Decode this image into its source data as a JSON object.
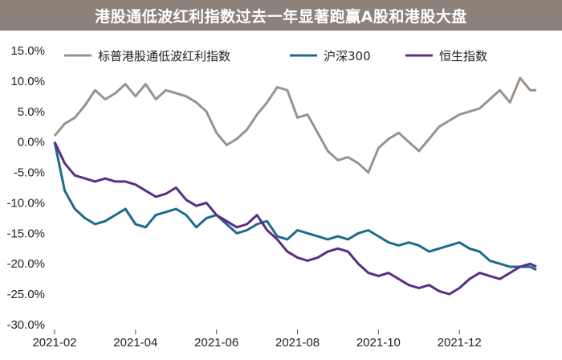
{
  "title": "港股通低波红利指数过去一年显著跑赢A股和港股大盘",
  "colors": {
    "title_bg": "#8c8279",
    "s1": "#9a928b",
    "s2": "#1d6a8c",
    "s3": "#5b2d86"
  },
  "chart_data": {
    "type": "line",
    "ylim": [
      -30,
      15
    ],
    "y_ticks": [
      15,
      10,
      5,
      0,
      -5,
      -10,
      -15,
      -20,
      -25,
      -30
    ],
    "y_tick_labels": [
      "15.0%",
      "10.0%",
      "5.0%",
      "0.0%",
      "-5.0%",
      "-10.0%",
      "-15.0%",
      "-20.0%",
      "-25.0%",
      "-30.0%"
    ],
    "x_ticks": [
      0,
      2,
      4,
      6,
      8,
      10
    ],
    "x_tick_labels": [
      "2021-02",
      "2021-04",
      "2021-06",
      "2021-08",
      "2021-10",
      "2021-12"
    ],
    "xlim": [
      0,
      11.9
    ],
    "legend_position": "top",
    "series": [
      {
        "name": "标普港股通低波红利指数",
        "color": "#9a928b",
        "x": [
          0,
          0.25,
          0.5,
          0.75,
          1,
          1.25,
          1.5,
          1.75,
          2,
          2.25,
          2.5,
          2.75,
          3,
          3.25,
          3.5,
          3.75,
          4,
          4.25,
          4.5,
          4.75,
          5,
          5.25,
          5.5,
          5.75,
          6,
          6.25,
          6.5,
          6.75,
          7,
          7.25,
          7.5,
          7.75,
          8,
          8.25,
          8.5,
          8.75,
          9,
          9.25,
          9.5,
          9.75,
          10,
          10.25,
          10.5,
          10.75,
          11,
          11.25,
          11.5,
          11.75,
          11.9
        ],
        "values": [
          1.0,
          3.0,
          4.0,
          6.0,
          8.5,
          7.0,
          8.0,
          9.5,
          7.5,
          9.5,
          7.0,
          8.5,
          8.0,
          7.5,
          6.5,
          5.0,
          1.5,
          -0.5,
          0.5,
          2.0,
          4.5,
          6.5,
          9.0,
          8.5,
          4.0,
          4.5,
          1.5,
          -1.5,
          -3.0,
          -2.5,
          -3.5,
          -5.0,
          -1.0,
          0.5,
          1.5,
          0.0,
          -1.5,
          0.5,
          2.5,
          3.5,
          4.5,
          5.0,
          5.5,
          7.0,
          8.5,
          6.5,
          10.5,
          8.5,
          8.5
        ]
      },
      {
        "name": "沪深300",
        "color": "#1d6a8c",
        "x": [
          0,
          0.25,
          0.5,
          0.75,
          1,
          1.25,
          1.5,
          1.75,
          2,
          2.25,
          2.5,
          2.75,
          3,
          3.25,
          3.5,
          3.75,
          4,
          4.25,
          4.5,
          4.75,
          5,
          5.25,
          5.5,
          5.75,
          6,
          6.25,
          6.5,
          6.75,
          7,
          7.25,
          7.5,
          7.75,
          8,
          8.25,
          8.5,
          8.75,
          9,
          9.25,
          9.5,
          9.75,
          10,
          10.25,
          10.5,
          10.75,
          11,
          11.25,
          11.5,
          11.75,
          11.9
        ],
        "values": [
          0.0,
          -8.0,
          -11.0,
          -12.5,
          -13.5,
          -13.0,
          -12.0,
          -11.0,
          -13.5,
          -14.0,
          -12.0,
          -11.5,
          -11.0,
          -12.0,
          -14.0,
          -12.5,
          -12.0,
          -13.5,
          -15.0,
          -14.5,
          -13.5,
          -13.0,
          -15.5,
          -16.0,
          -14.5,
          -15.0,
          -15.5,
          -16.0,
          -15.5,
          -16.0,
          -15.0,
          -14.5,
          -15.5,
          -16.5,
          -17.0,
          -16.5,
          -17.0,
          -18.0,
          -17.5,
          -17.0,
          -16.5,
          -17.5,
          -18.0,
          -19.5,
          -20.0,
          -20.5,
          -20.5,
          -20.5,
          -21.0
        ]
      },
      {
        "name": "恒生指数",
        "color": "#5b2d86",
        "x": [
          0,
          0.25,
          0.5,
          0.75,
          1,
          1.25,
          1.5,
          1.75,
          2,
          2.25,
          2.5,
          2.75,
          3,
          3.25,
          3.5,
          3.75,
          4,
          4.25,
          4.5,
          4.75,
          5,
          5.25,
          5.5,
          5.75,
          6,
          6.25,
          6.5,
          6.75,
          7,
          7.25,
          7.5,
          7.75,
          8,
          8.25,
          8.5,
          8.75,
          9,
          9.25,
          9.5,
          9.75,
          10,
          10.25,
          10.5,
          10.75,
          11,
          11.25,
          11.5,
          11.75,
          11.9
        ],
        "values": [
          0.0,
          -3.5,
          -5.5,
          -6.0,
          -6.5,
          -6.0,
          -6.5,
          -6.5,
          -7.0,
          -8.0,
          -9.0,
          -8.5,
          -7.5,
          -9.5,
          -10.5,
          -10.0,
          -12.0,
          -13.0,
          -14.0,
          -13.5,
          -12.0,
          -14.5,
          -16.0,
          -18.0,
          -19.0,
          -19.5,
          -19.0,
          -18.0,
          -17.5,
          -18.0,
          -20.0,
          -21.5,
          -22.0,
          -21.5,
          -22.5,
          -23.5,
          -24.0,
          -23.5,
          -24.5,
          -25.0,
          -24.0,
          -22.5,
          -21.5,
          -22.0,
          -22.5,
          -21.5,
          -20.5,
          -20.0,
          -20.5
        ]
      }
    ]
  }
}
